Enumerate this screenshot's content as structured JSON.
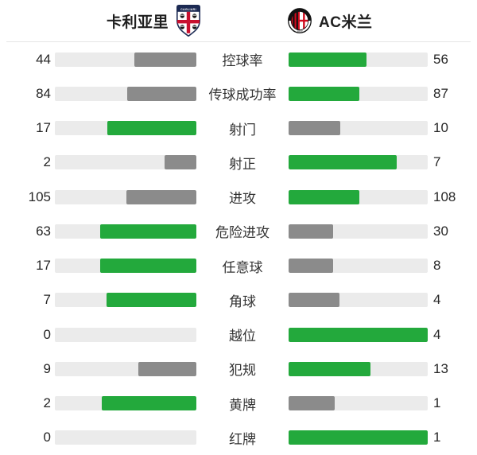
{
  "header": {
    "home_team": "卡利亚里",
    "away_team": "AC米兰",
    "home_badge_icon": "cagliari-crest",
    "away_badge_icon": "ac-milan-crest"
  },
  "colors": {
    "green": "#23a93c",
    "gray": "#8b8b8b",
    "track": "#ebebeb",
    "divider": "#e6e6e6",
    "cagliari_navy": "#1c2a53",
    "crest_red": "#c8102e"
  },
  "chart_data": {
    "type": "bar",
    "orientation": "horizontal-paired",
    "title": "卡利亚里 vs AC米兰",
    "categories": [
      "控球率",
      "传球成功率",
      "射门",
      "射正",
      "进攻",
      "危险进攻",
      "任意球",
      "角球",
      "越位",
      "犯规",
      "黄牌",
      "红牌"
    ],
    "series": [
      {
        "name": "卡利亚里",
        "values": [
          44,
          84,
          17,
          2,
          105,
          63,
          17,
          7,
          0,
          9,
          2,
          0
        ]
      },
      {
        "name": "AC米兰",
        "values": [
          56,
          87,
          10,
          7,
          108,
          30,
          8,
          4,
          4,
          13,
          1,
          1
        ]
      }
    ],
    "bar_scale": "each pair normalized to home+away sum",
    "highlight_rule": "side with higher value is green, lower side gray, zero side empty",
    "legend_position": "none",
    "grid": false
  }
}
